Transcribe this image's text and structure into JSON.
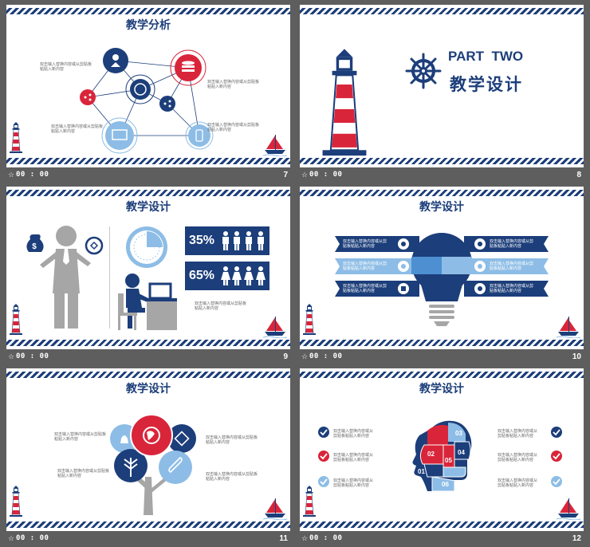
{
  "caption": {
    "star": "☆",
    "time": "00 : 00"
  },
  "placeholder_text": "双击输入替换内容或从剪贴板粘贴入新内容",
  "colors": {
    "navy": "#1c3e7a",
    "red": "#d9253a",
    "light_blue": "#8dbde6",
    "gray": "#a6a6a6"
  },
  "slides": [
    {
      "number": "7",
      "title": "教学分析"
    },
    {
      "number": "8",
      "part": "PART  TWO",
      "title": "教学设计"
    },
    {
      "number": "9",
      "title": "教学设计",
      "stat1": "35%",
      "stat2": "65%"
    },
    {
      "number": "10",
      "title": "教学设计"
    },
    {
      "number": "11",
      "title": "教学设计"
    },
    {
      "number": "12",
      "title": "教学设计",
      "pieces": [
        "01",
        "02",
        "03",
        "04",
        "05",
        "06"
      ]
    }
  ]
}
